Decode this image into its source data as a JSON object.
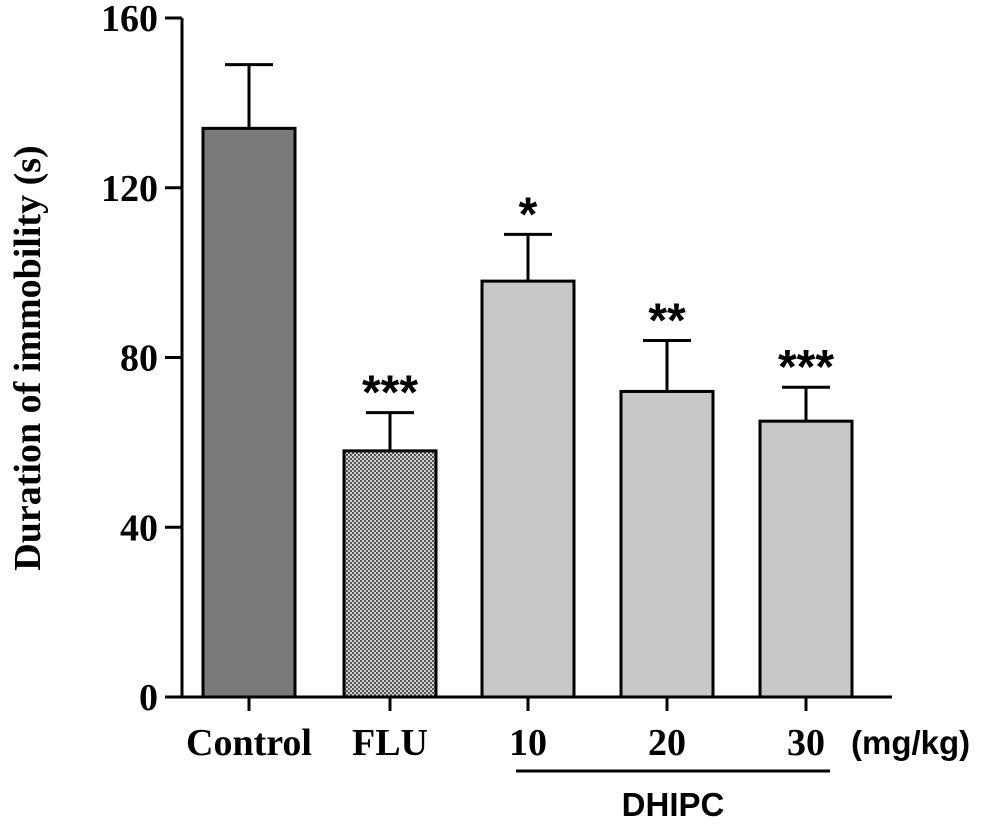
{
  "chart_data": {
    "type": "bar",
    "ylabel": "Duration of immobility (s)",
    "ylim": [
      0,
      160
    ],
    "yticks": [
      0,
      40,
      80,
      120,
      160
    ],
    "categories": [
      "Control",
      "FLU",
      "10",
      "20",
      "30"
    ],
    "unit_label": "(mg/kg)",
    "group_label": "DHIPC",
    "values": [
      134,
      58,
      98,
      72,
      65
    ],
    "errors": [
      15,
      9,
      11,
      12,
      8
    ],
    "significance": [
      "",
      "***",
      "*",
      "**",
      "***"
    ],
    "colors": [
      "#7a7a7a",
      "#9a9a9a",
      "#c8c8c8",
      "#c8c8c8",
      "#c8c8c8"
    ]
  }
}
